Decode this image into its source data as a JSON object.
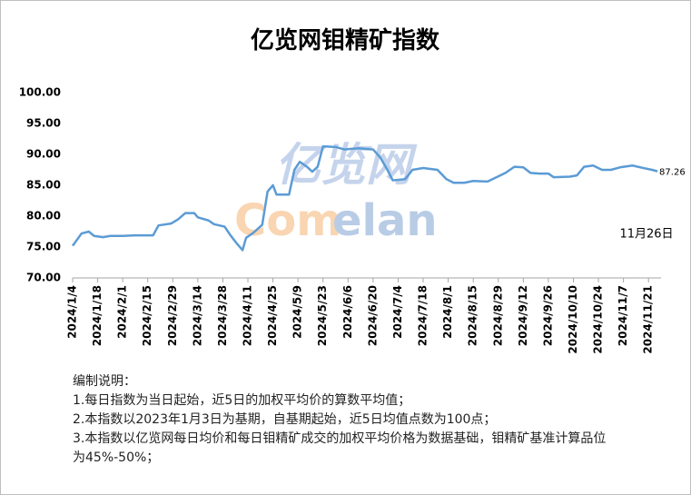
{
  "chart_data": {
    "type": "line",
    "title": "亿览网钼精矿指数",
    "watermark": [
      "亿览网",
      "Com",
      "elan"
    ],
    "annotation": "11月26日",
    "notes": [
      "编制说明：",
      "1.每日指数为当日起始，近5日的加权平均价的算数平均值；",
      "2.本指数以2023年1月3日为基期，自基期起始，近5日均值点数为100点；",
      "3.本指数以亿览网每日均价和每日钼精矿成交的加权平均价格为数据基础，钼精矿基准计算品位为45%-50%；"
    ],
    "x": [
      "2024/1/4",
      "2024/1/6",
      "2024/1/9",
      "2024/1/13",
      "2024/1/16",
      "2024/1/21",
      "2024/1/25",
      "2024/2/1",
      "2024/2/8",
      "2024/2/18",
      "2024/2/21",
      "2024/2/28",
      "2024/3/3",
      "2024/3/7",
      "2024/3/12",
      "2024/3/14",
      "2024/3/20",
      "2024/3/23",
      "2024/3/29",
      "2024/4/1",
      "2024/4/5",
      "2024/4/8",
      "2024/4/10",
      "2024/4/14",
      "2024/4/19",
      "2024/4/22",
      "2024/4/25",
      "2024/4/27",
      "2024/5/4",
      "2024/5/7",
      "2024/5/10",
      "2024/5/14",
      "2024/5/17",
      "2024/5/20",
      "2024/5/23",
      "2024/5/30",
      "2024/6/4",
      "2024/6/12",
      "2024/6/20",
      "2024/6/24",
      "2024/6/28",
      "2024/7/1",
      "2024/7/8",
      "2024/7/12",
      "2024/7/18",
      "2024/7/26",
      "2024/7/31",
      "2024/8/4",
      "2024/8/10",
      "2024/8/15",
      "2024/8/23",
      "2024/8/28",
      "2024/9/2",
      "2024/9/7",
      "2024/9/12",
      "2024/9/16",
      "2024/9/21",
      "2024/9/26",
      "2024/9/29",
      "2024/10/8",
      "2024/10/12",
      "2024/10/16",
      "2024/10/21",
      "2024/10/26",
      "2024/10/31",
      "2024/11/5",
      "2024/11/12",
      "2024/11/18",
      "2024/11/23",
      "2024/11/26"
    ],
    "series": [
      {
        "name": "亿览网钼精矿指数",
        "color": "#5b9bd5",
        "values": [
          75.2,
          76.0,
          77.2,
          77.5,
          76.8,
          76.6,
          76.8,
          76.8,
          76.9,
          76.9,
          78.5,
          78.8,
          79.5,
          80.5,
          80.5,
          79.8,
          79.3,
          78.7,
          78.3,
          77.0,
          75.5,
          74.5,
          76.5,
          77.3,
          78.6,
          84.0,
          85.0,
          83.5,
          83.5,
          87.5,
          88.8,
          88.0,
          87.2,
          88.0,
          91.3,
          91.2,
          90.8,
          91.0,
          90.8,
          89.5,
          87.5,
          85.8,
          86.0,
          87.5,
          87.8,
          87.5,
          86.0,
          85.4,
          85.4,
          85.7,
          85.6,
          86.3,
          87.0,
          88.0,
          87.9,
          87.0,
          86.9,
          86.9,
          86.3,
          86.4,
          86.6,
          88.0,
          88.2,
          87.5,
          87.5,
          87.9,
          88.2,
          87.8,
          87.5,
          87.26
        ]
      }
    ],
    "xlim": [
      "2024/1/4",
      "2024/11/28"
    ],
    "xticks": [
      "2024/1/4",
      "2024/1/18",
      "2024/2/1",
      "2024/2/15",
      "2024/2/29",
      "2024/3/14",
      "2024/3/28",
      "2024/4/11",
      "2024/4/25",
      "2024/5/9",
      "2024/5/23",
      "2024/6/6",
      "2024/6/20",
      "2024/7/4",
      "2024/7/18",
      "2024/8/1",
      "2024/8/15",
      "2024/8/29",
      "2024/9/12",
      "2024/9/26",
      "2024/10/10",
      "2024/10/24",
      "2024/11/7",
      "2024/11/21"
    ],
    "ylim": [
      70,
      100
    ],
    "yticks": [
      {
        "value": 70,
        "label": "70.00"
      },
      {
        "value": 75,
        "label": "75.00"
      },
      {
        "value": 80,
        "label": "80.00"
      },
      {
        "value": 85,
        "label": "85.00"
      },
      {
        "value": 90,
        "label": "90.00"
      },
      {
        "value": 95,
        "label": "95.00"
      },
      {
        "value": 100,
        "label": "100.00"
      }
    ],
    "grid": false
  }
}
